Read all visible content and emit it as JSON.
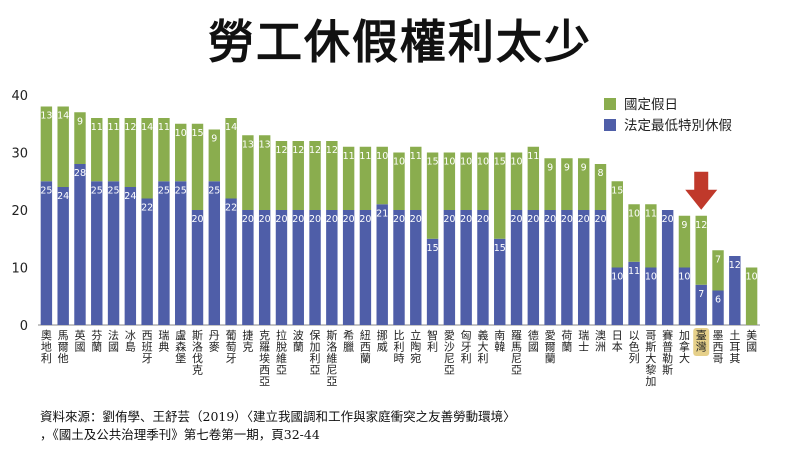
{
  "title": "勞工休假權利太少",
  "source": {
    "line1": "資料來源：劉侑學、王舒芸（2019）〈建立我國調和工作與家庭衝突之友善勞動環境〉",
    "line2": "，《國土及公共治理季刊》第七卷第一期，頁32-44"
  },
  "colors": {
    "statutory_leave": "#4f5ea8",
    "public_holidays": "#8aad4e",
    "highlight_label_bg": "#e6d08a",
    "arrow": "#c0392b"
  },
  "chart_data": {
    "type": "bar",
    "stacked": true,
    "categories": [
      "奧地利",
      "馬爾他",
      "英國",
      "芬蘭",
      "法國",
      "冰島",
      "西班牙",
      "瑞典",
      "盧森堡",
      "斯洛伐克",
      "丹麥",
      "葡萄牙",
      "捷克",
      "克羅埃西亞",
      "拉脫維亞",
      "波蘭",
      "保加利亞",
      "斯洛維尼亞",
      "希臘",
      "紐西蘭",
      "挪威",
      "比利時",
      "立陶宛",
      "智利",
      "愛沙尼亞",
      "匈牙利",
      "義大利",
      "南韓",
      "羅馬尼亞",
      "德國",
      "愛爾蘭",
      "荷蘭",
      "瑞士",
      "澳洲",
      "日本",
      "以色列",
      "哥斯大黎加",
      "賽普勒斯",
      "加拿大",
      "臺灣",
      "墨西哥",
      "土耳其",
      "美國"
    ],
    "series": [
      {
        "name": "法定最低特別休假",
        "values": [
          25,
          24,
          28,
          25,
          25,
          24,
          22,
          25,
          25,
          20,
          25,
          22,
          20,
          20,
          20,
          20,
          20,
          20,
          20,
          20,
          21,
          20,
          20,
          15,
          20,
          20,
          20,
          15,
          20,
          20,
          20,
          20,
          20,
          20,
          10,
          11,
          10,
          20,
          10,
          7,
          6,
          12,
          0
        ]
      },
      {
        "name": "國定假日",
        "values": [
          13,
          14,
          9,
          11,
          11,
          12,
          14,
          11,
          10,
          15,
          9,
          14,
          13,
          13,
          12,
          12,
          12,
          12,
          11,
          11,
          10,
          10,
          11,
          15,
          10,
          10,
          10,
          15,
          10,
          11,
          9,
          9,
          9,
          8,
          15,
          10,
          11,
          0,
          9,
          12,
          7,
          0,
          10
        ]
      }
    ],
    "segment_labels": {
      "法定最低特別休假": [
        "25",
        "24",
        "28",
        "25",
        "25",
        "24",
        "22",
        "25",
        "25",
        "20",
        "25",
        "22",
        "20",
        "20",
        "20",
        "20",
        "20",
        "20",
        "20",
        "20",
        "21",
        "20",
        "20",
        "15",
        "20",
        "20",
        "20",
        "15",
        "20",
        "20",
        "20",
        "20",
        "20",
        "20",
        "10",
        "11",
        "10",
        "20",
        "10",
        "7",
        "6",
        "12",
        ""
      ],
      "國定假日": [
        "13",
        "14",
        "9",
        "11",
        "11",
        "12",
        "14",
        "11",
        "10",
        "15",
        "9",
        "14",
        "13",
        "13",
        "12",
        "12",
        "12",
        "12",
        "11",
        "11",
        "10",
        "10",
        "11",
        "15",
        "10",
        "10",
        "10",
        "15",
        "10",
        "11",
        "9",
        "9",
        "9",
        "8",
        "15",
        "10",
        "11",
        "",
        "9",
        "12",
        "7",
        "",
        "10"
      ]
    },
    "highlight_category": "臺灣",
    "ylim": [
      0,
      40
    ],
    "yticks": [
      "0",
      "10",
      "20",
      "30",
      "40"
    ],
    "legend_position": "top-right",
    "grid": false
  }
}
